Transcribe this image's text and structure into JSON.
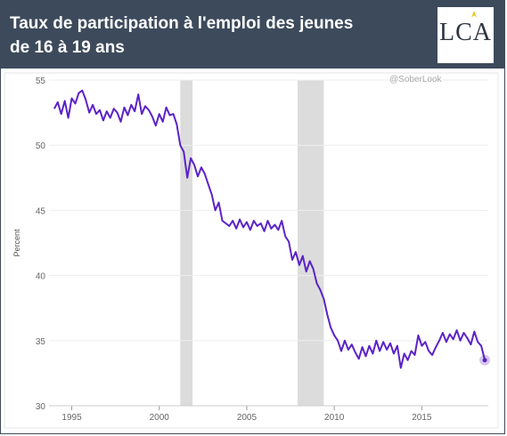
{
  "header": {
    "title_line1": "Taux de participation à l'emploi des jeunes",
    "title_line2": "de 16 à 19 ans",
    "logo_text": "LCA",
    "background_color": "#3d4a5c",
    "logo_accent_color": "#e8c21a"
  },
  "chart_data": {
    "type": "line",
    "title": "",
    "watermark": "@SoberLook",
    "xlabel": "",
    "ylabel": "Percent",
    "xlim": [
      1993.7,
      2018.8
    ],
    "ylim": [
      30,
      55
    ],
    "yticks": [
      30,
      35,
      40,
      45,
      50,
      55
    ],
    "xticks": [
      1995,
      2000,
      2005,
      2010,
      2015
    ],
    "grid": "horizontal",
    "line_color": "#5b22c8",
    "recession_color": "#dcdcdc",
    "recessions": [
      [
        2001.2,
        2001.9
      ],
      [
        2007.9,
        2009.4
      ]
    ],
    "series": [
      {
        "values": [
          [
            1994.0,
            52.8
          ],
          [
            1994.2,
            53.3
          ],
          [
            1994.4,
            52.4
          ],
          [
            1994.6,
            53.4
          ],
          [
            1994.8,
            52.1
          ],
          [
            1995.0,
            53.6
          ],
          [
            1995.2,
            53.2
          ],
          [
            1995.4,
            54.0
          ],
          [
            1995.6,
            54.2
          ],
          [
            1995.8,
            53.5
          ],
          [
            1996.0,
            52.5
          ],
          [
            1996.2,
            53.1
          ],
          [
            1996.4,
            52.4
          ],
          [
            1996.6,
            52.7
          ],
          [
            1996.8,
            51.9
          ],
          [
            1997.0,
            52.6
          ],
          [
            1997.2,
            52.1
          ],
          [
            1997.4,
            52.8
          ],
          [
            1997.6,
            52.5
          ],
          [
            1997.8,
            51.8
          ],
          [
            1998.0,
            52.9
          ],
          [
            1998.2,
            52.3
          ],
          [
            1998.4,
            53.1
          ],
          [
            1998.6,
            52.6
          ],
          [
            1998.8,
            53.9
          ],
          [
            1999.0,
            52.4
          ],
          [
            1999.2,
            53.0
          ],
          [
            1999.4,
            52.7
          ],
          [
            1999.6,
            52.2
          ],
          [
            1999.8,
            51.5
          ],
          [
            2000.0,
            52.4
          ],
          [
            2000.2,
            51.8
          ],
          [
            2000.4,
            52.9
          ],
          [
            2000.6,
            52.3
          ],
          [
            2000.8,
            52.4
          ],
          [
            2001.0,
            51.6
          ],
          [
            2001.2,
            50.0
          ],
          [
            2001.4,
            49.5
          ],
          [
            2001.6,
            47.5
          ],
          [
            2001.8,
            49.0
          ],
          [
            2002.0,
            48.5
          ],
          [
            2002.2,
            47.6
          ],
          [
            2002.4,
            48.3
          ],
          [
            2002.6,
            47.8
          ],
          [
            2002.8,
            47.0
          ],
          [
            2003.0,
            46.2
          ],
          [
            2003.2,
            45.0
          ],
          [
            2003.4,
            45.6
          ],
          [
            2003.6,
            44.2
          ],
          [
            2003.8,
            44.0
          ],
          [
            2004.0,
            43.8
          ],
          [
            2004.2,
            44.2
          ],
          [
            2004.4,
            43.6
          ],
          [
            2004.6,
            44.3
          ],
          [
            2004.8,
            43.7
          ],
          [
            2005.0,
            44.1
          ],
          [
            2005.2,
            43.5
          ],
          [
            2005.4,
            44.2
          ],
          [
            2005.6,
            43.8
          ],
          [
            2005.8,
            44.0
          ],
          [
            2006.0,
            43.4
          ],
          [
            2006.2,
            44.2
          ],
          [
            2006.4,
            43.6
          ],
          [
            2006.6,
            43.9
          ],
          [
            2006.8,
            43.5
          ],
          [
            2007.0,
            44.2
          ],
          [
            2007.2,
            43.0
          ],
          [
            2007.4,
            42.6
          ],
          [
            2007.6,
            41.2
          ],
          [
            2007.8,
            41.8
          ],
          [
            2008.0,
            40.8
          ],
          [
            2008.2,
            41.5
          ],
          [
            2008.4,
            40.3
          ],
          [
            2008.6,
            41.1
          ],
          [
            2008.8,
            40.5
          ],
          [
            2009.0,
            39.4
          ],
          [
            2009.2,
            38.9
          ],
          [
            2009.4,
            38.2
          ],
          [
            2009.6,
            37.0
          ],
          [
            2009.8,
            36.0
          ],
          [
            2010.0,
            35.4
          ],
          [
            2010.2,
            35.0
          ],
          [
            2010.4,
            34.2
          ],
          [
            2010.6,
            35.0
          ],
          [
            2010.8,
            34.3
          ],
          [
            2011.0,
            34.7
          ],
          [
            2011.2,
            34.1
          ],
          [
            2011.4,
            33.6
          ],
          [
            2011.6,
            34.5
          ],
          [
            2011.8,
            33.8
          ],
          [
            2012.0,
            34.6
          ],
          [
            2012.2,
            34.0
          ],
          [
            2012.4,
            35.0
          ],
          [
            2012.6,
            34.2
          ],
          [
            2012.8,
            34.9
          ],
          [
            2013.0,
            34.3
          ],
          [
            2013.2,
            34.8
          ],
          [
            2013.4,
            34.0
          ],
          [
            2013.6,
            34.6
          ],
          [
            2013.8,
            32.9
          ],
          [
            2014.0,
            34.0
          ],
          [
            2014.2,
            33.5
          ],
          [
            2014.4,
            34.2
          ],
          [
            2014.6,
            33.9
          ],
          [
            2014.8,
            35.4
          ],
          [
            2015.0,
            34.6
          ],
          [
            2015.2,
            34.9
          ],
          [
            2015.4,
            34.2
          ],
          [
            2015.6,
            33.9
          ],
          [
            2015.8,
            34.5
          ],
          [
            2016.0,
            35.0
          ],
          [
            2016.2,
            35.6
          ],
          [
            2016.4,
            34.9
          ],
          [
            2016.6,
            35.5
          ],
          [
            2016.8,
            35.1
          ],
          [
            2017.0,
            35.8
          ],
          [
            2017.2,
            35.0
          ],
          [
            2017.4,
            35.6
          ],
          [
            2017.6,
            35.2
          ],
          [
            2017.8,
            34.7
          ],
          [
            2018.0,
            35.7
          ],
          [
            2018.2,
            34.9
          ],
          [
            2018.4,
            34.6
          ],
          [
            2018.6,
            33.5
          ]
        ]
      }
    ]
  }
}
